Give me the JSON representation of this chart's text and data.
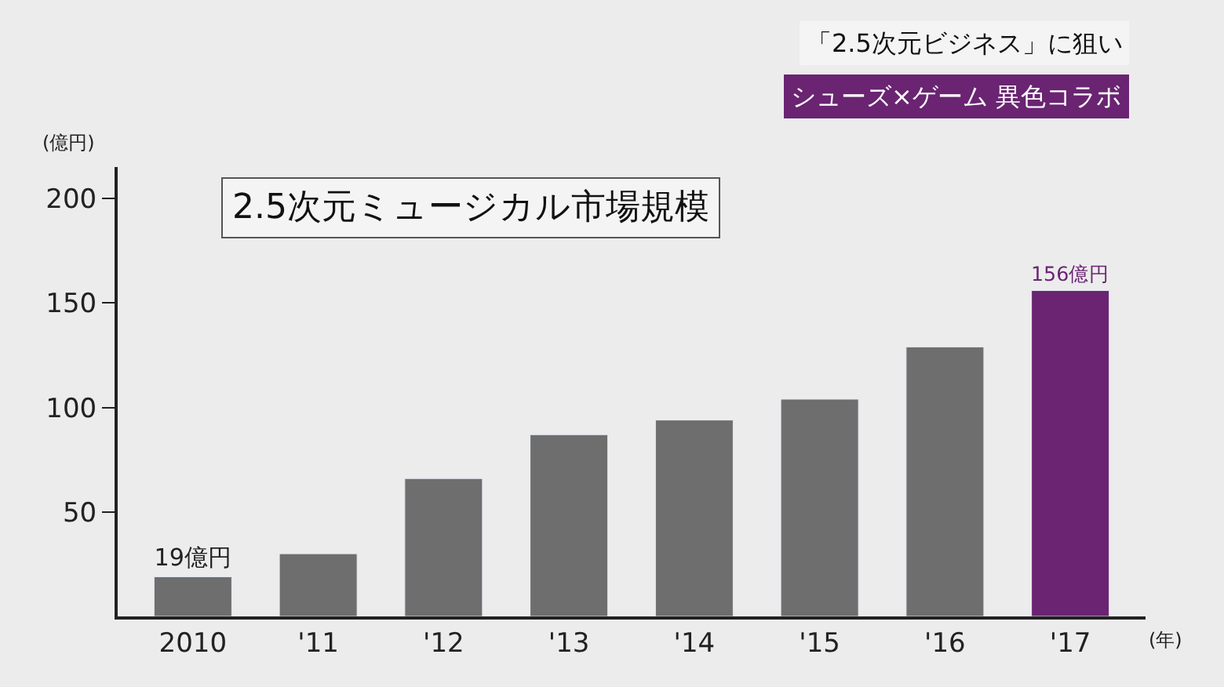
{
  "chart_data": {
    "type": "bar",
    "title": "2.5次元ミュージカル市場規模",
    "ylabel": "(億円)",
    "xlabel": "(年)",
    "annotations": [
      "「2.5次元ビジネス」に狙い",
      "シューズ×ゲーム 異色コラボ"
    ],
    "categories": [
      "2010",
      "'11",
      "'12",
      "'13",
      "'14",
      "'15",
      "'16",
      "'17"
    ],
    "values": [
      19,
      30,
      66,
      87,
      94,
      104,
      129,
      156
    ],
    "colors": [
      "#6e6e6e",
      "#6e6e6e",
      "#6e6e6e",
      "#6e6e6e",
      "#6e6e6e",
      "#6e6e6e",
      "#6e6e6e",
      "#6a2472"
    ],
    "value_labels": [
      "19億円",
      null,
      null,
      null,
      null,
      null,
      null,
      "156億円"
    ],
    "ylim": [
      0,
      215
    ],
    "yticks": [
      50,
      100,
      150,
      200
    ],
    "grid": false
  }
}
